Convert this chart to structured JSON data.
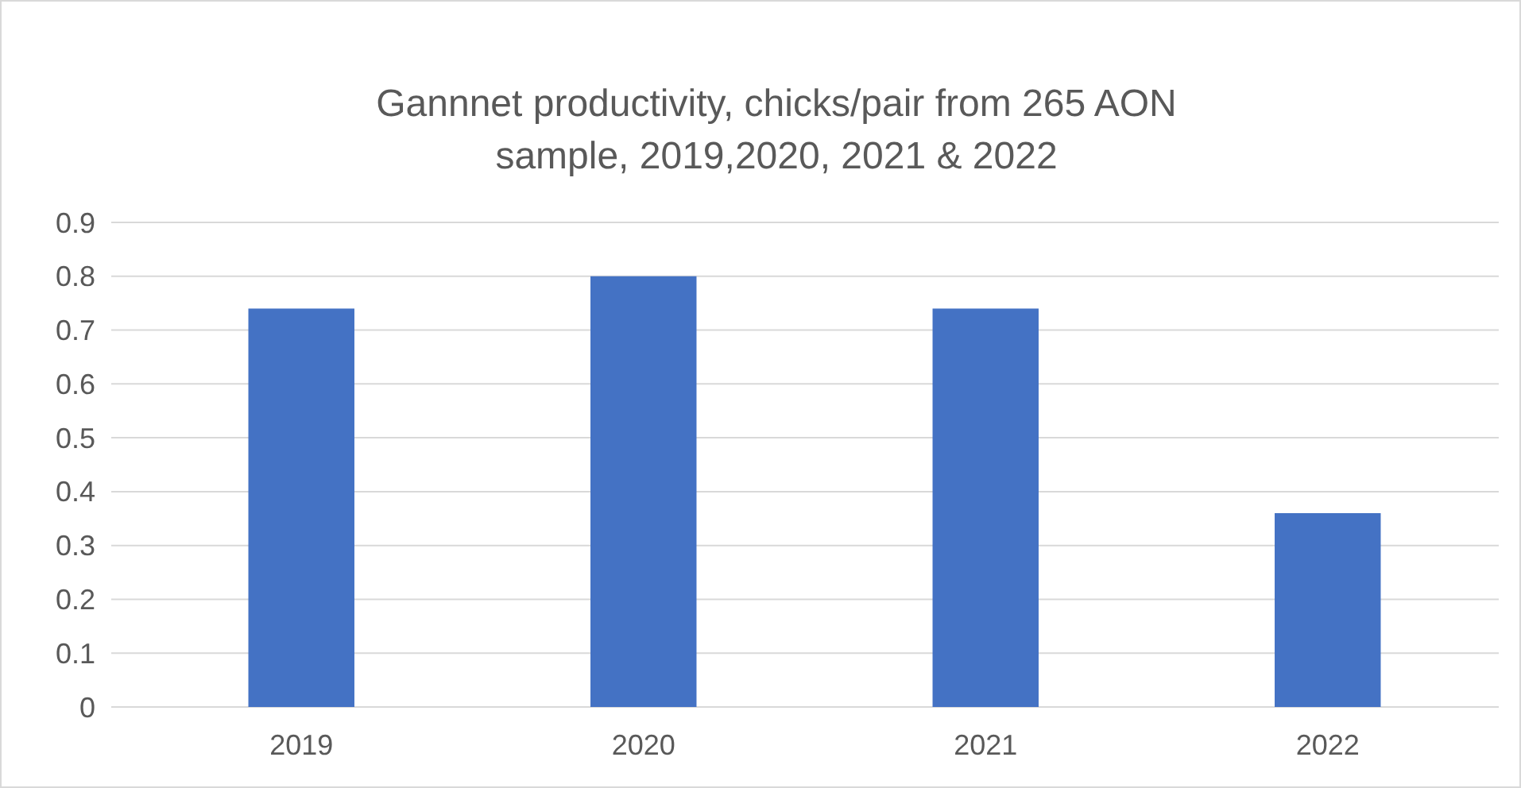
{
  "chart_data": {
    "type": "bar",
    "title": "Gannnet productivity, chicks/pair from 265 AON sample, 2019,2020, 2021 & 2022",
    "categories": [
      "2019",
      "2020",
      "2021",
      "2022"
    ],
    "values": [
      0.74,
      0.8,
      0.74,
      0.36
    ],
    "color": "#4472c4",
    "ylim": [
      0,
      0.9
    ],
    "yticks": [
      0,
      0.1,
      0.2,
      0.3,
      0.4,
      0.5,
      0.6,
      0.7,
      0.8,
      0.9
    ],
    "grid": "y"
  }
}
